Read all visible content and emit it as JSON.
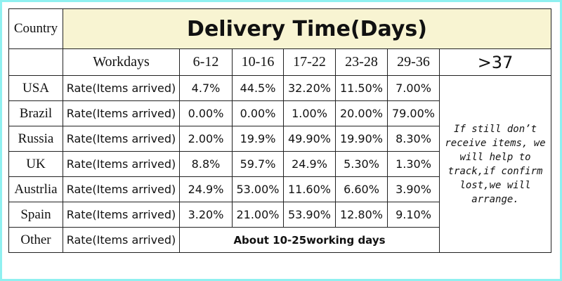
{
  "header": {
    "country": "Country",
    "title": "Delivery Time(Days)"
  },
  "columns": {
    "label": "Workdays",
    "ranges": [
      "6-12",
      "10-16",
      "17-22",
      "23-28",
      "29-36"
    ],
    "last": ">37"
  },
  "rows": [
    {
      "country": "USA",
      "label": "Rate(Items arrived)",
      "rates": [
        "4.7%",
        "44.5%",
        "32.20%",
        "11.50%",
        "7.00%"
      ]
    },
    {
      "country": "Brazil",
      "label": "Rate(Items arrived)",
      "rates": [
        "0.00%",
        "0.00%",
        "1.00%",
        "20.00%",
        "79.00%"
      ]
    },
    {
      "country": "Russia",
      "label": "Rate(Items arrived)",
      "rates": [
        "2.00%",
        "19.9%",
        "49.90%",
        "19.90%",
        "8.30%"
      ]
    },
    {
      "country": "UK",
      "label": "Rate(Items arrived)",
      "rates": [
        "8.8%",
        "59.7%",
        "24.9%",
        "5.30%",
        "1.30%"
      ]
    },
    {
      "country": "Austrlia",
      "label": "Rate(Items arrived)",
      "rates": [
        "24.9%",
        "53.00%",
        "11.60%",
        "6.60%",
        "3.90%"
      ]
    },
    {
      "country": "Spain",
      "label": "Rate(Items arrived)",
      "rates": [
        "3.20%",
        "21.00%",
        "53.90%",
        "12.80%",
        "9.10%"
      ]
    }
  ],
  "other": {
    "country": "Other",
    "label": "Rate(Items arrived)",
    "text": "About 10-25working days"
  },
  "note": "If still don’t receive items, we will help to track,if confirm lost,we will arrange."
}
